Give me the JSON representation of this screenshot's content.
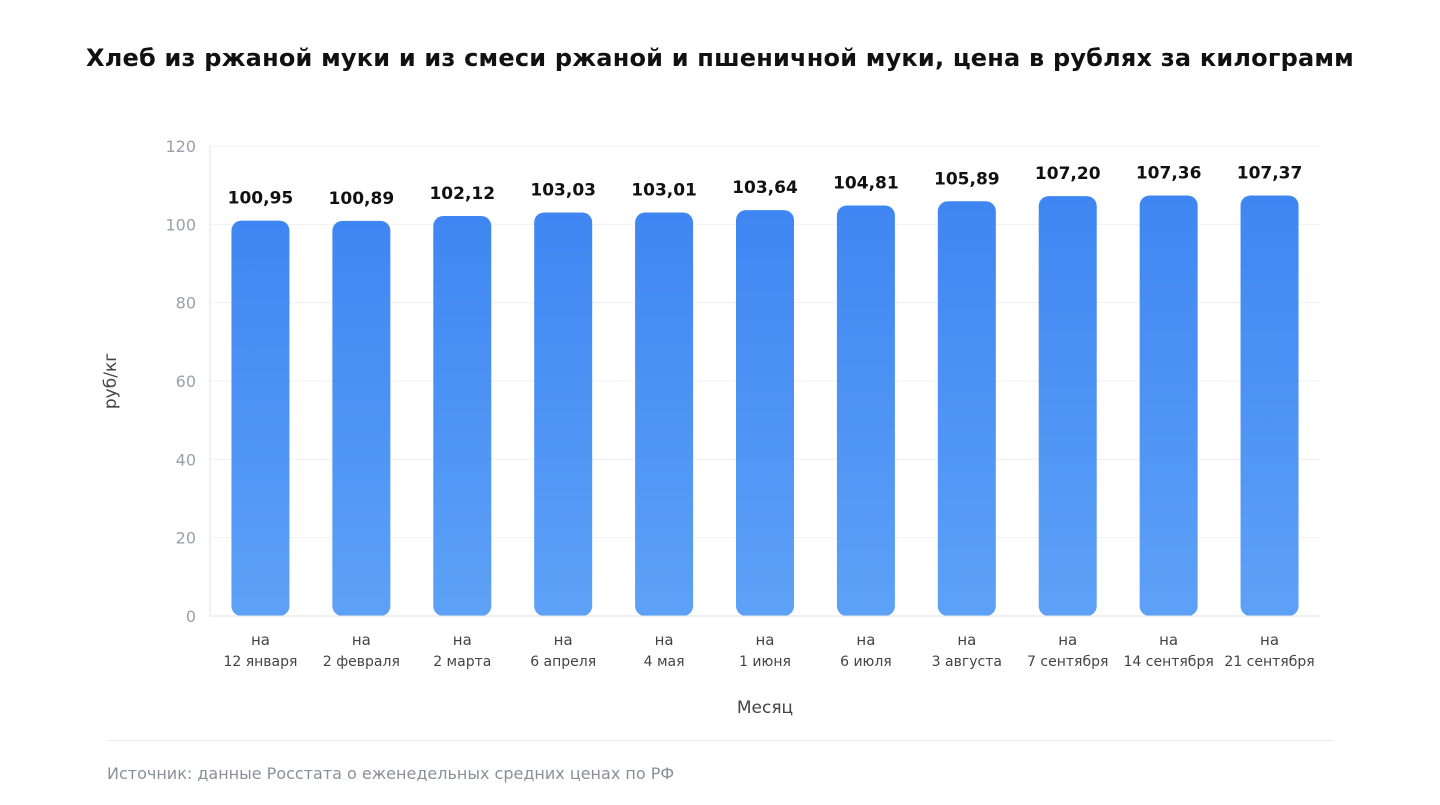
{
  "chart_data": {
    "type": "bar",
    "title": "Хлеб из ржаной муки и из смеси ржаной и пшеничной муки, цена в рублях за килограмм",
    "xlabel": "Месяц",
    "ylabel": "руб/кг",
    "ylim": [
      0,
      120
    ],
    "yticks": [
      "0",
      "20",
      "40",
      "60",
      "80",
      "100",
      "120"
    ],
    "grid": true,
    "categories": [
      {
        "line1": "на",
        "line2": "12 января"
      },
      {
        "line1": "на",
        "line2": "2 февраля"
      },
      {
        "line1": "на",
        "line2": "2 марта"
      },
      {
        "line1": "на",
        "line2": "6 апреля"
      },
      {
        "line1": "на",
        "line2": "4 мая"
      },
      {
        "line1": "на",
        "line2": "1 июня"
      },
      {
        "line1": "на",
        "line2": "6 июля"
      },
      {
        "line1": "на",
        "line2": "3 августа"
      },
      {
        "line1": "на",
        "line2": "7 сентября"
      },
      {
        "line1": "на",
        "line2": "14 сентября"
      },
      {
        "line1": "на",
        "line2": "21 сентября"
      }
    ],
    "values": [
      100.95,
      100.89,
      102.12,
      103.03,
      103.01,
      103.64,
      104.81,
      105.89,
      107.2,
      107.36,
      107.37
    ],
    "value_labels": [
      "100,95",
      "100,89",
      "102,12",
      "103,03",
      "103,01",
      "103,64",
      "104,81",
      "105,89",
      "107,20",
      "107,36",
      "107,37"
    ],
    "colors": {
      "bar_top": "#3f86f2",
      "bar_bottom": "#5da1f7",
      "grid": "#f0f0f0",
      "tick": "#9aa0a8",
      "label": "#444444"
    }
  },
  "footer": {
    "source": "Источник: данные Росстата о еженедельных средних ценах по РФ"
  }
}
